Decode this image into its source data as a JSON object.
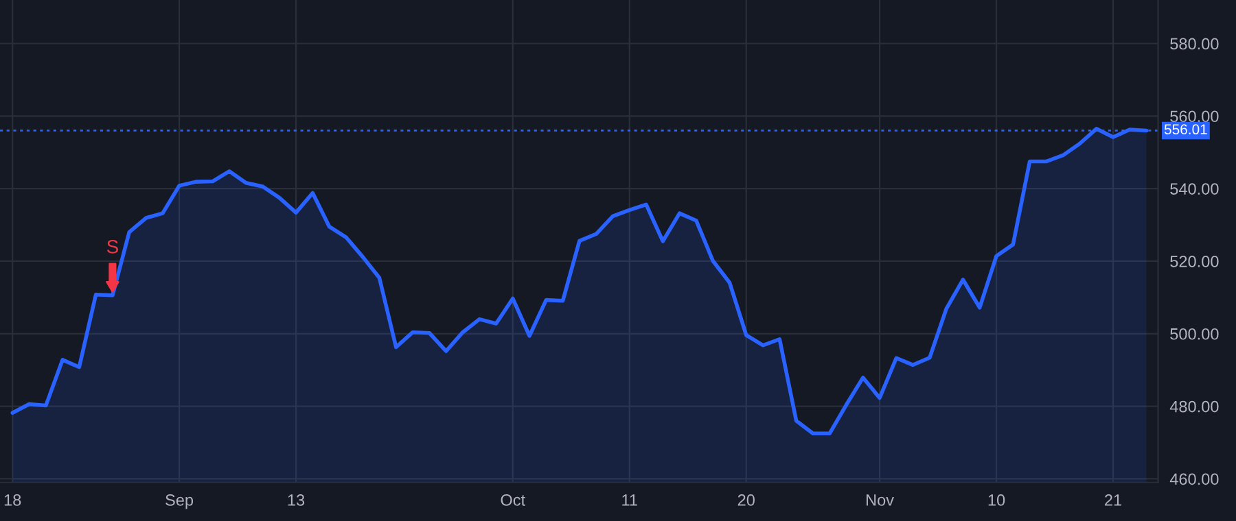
{
  "chart_data": {
    "type": "area",
    "categories": [
      "18",
      null,
      null,
      null,
      null,
      null,
      null,
      null,
      null,
      null,
      "Sep",
      null,
      null,
      null,
      null,
      null,
      null,
      "13",
      null,
      null,
      null,
      null,
      null,
      null,
      null,
      null,
      null,
      null,
      null,
      null,
      "Oct",
      null,
      null,
      null,
      null,
      null,
      null,
      "11",
      null,
      null,
      null,
      null,
      null,
      null,
      "20",
      null,
      null,
      null,
      null,
      null,
      null,
      null,
      "Nov",
      null,
      null,
      null,
      null,
      null,
      null,
      "10",
      null,
      null,
      null,
      null,
      null,
      null,
      "21",
      null,
      null
    ],
    "series": [
      {
        "color": "#2962ff",
        "values": [
          478.2,
          480.6,
          480.2,
          492.8,
          490.8,
          510.8,
          510.6,
          528.0,
          531.9,
          533.2,
          540.8,
          541.9,
          542.0,
          544.8,
          541.6,
          540.6,
          537.5,
          533.4,
          538.8,
          529.5,
          526.6,
          521.2,
          515.4,
          496.3,
          500.4,
          500.2,
          495.2,
          500.4,
          504.0,
          502.8,
          509.7,
          499.4,
          509.3,
          509.1,
          525.6,
          527.5,
          532.4,
          534.1,
          535.6,
          525.5,
          533.2,
          531.2,
          520.1,
          514.1,
          499.6,
          496.8,
          498.5,
          476.0,
          472.5,
          472.5,
          480.4,
          487.9,
          482.3,
          493.3,
          491.4,
          493.4,
          506.9,
          514.9,
          507.2,
          521.4,
          524.6,
          547.5,
          547.5,
          549.2,
          552.4,
          556.5,
          554.2,
          556.3,
          556.0
        ]
      }
    ],
    "ylim": [
      459,
      592
    ],
    "yticks": [
      {
        "value": 460,
        "label": "460.00"
      },
      {
        "value": 480,
        "label": "480.00"
      },
      {
        "value": 500,
        "label": "500.00"
      },
      {
        "value": 520,
        "label": "520.00"
      },
      {
        "value": 540,
        "label": "540.00"
      },
      {
        "value": 560,
        "label": "560.00"
      },
      {
        "value": 580,
        "label": "580.00"
      }
    ],
    "ref_lines": [
      {
        "axis": "y",
        "value": 556.01,
        "label": "556.01",
        "color": "#2962ff",
        "line_style": "dotted"
      }
    ],
    "annotations": [
      {
        "text": "S",
        "y": 510.6
      }
    ],
    "grid": true,
    "legend": false
  }
}
